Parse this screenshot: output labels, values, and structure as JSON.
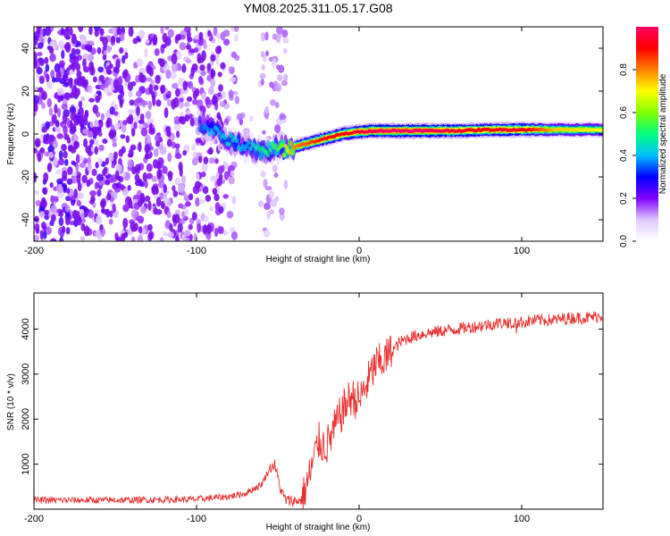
{
  "title": "YM08.2025.311.05.17.G08",
  "chart_data": [
    {
      "type": "heatmap",
      "description": "spectrogram",
      "xlabel": "Height of straight line (km)",
      "ylabel": "Frequency (Hz)",
      "xlim": [
        -200,
        150
      ],
      "ylim": [
        -50,
        50
      ],
      "xticks": [
        -200,
        -100,
        0,
        100
      ],
      "xtick_labels": [
        "-200",
        "-100",
        "0",
        "100"
      ],
      "yticks": [
        -40,
        -20,
        0,
        20,
        40
      ],
      "ytick_labels": [
        "-40",
        "-20",
        "0",
        "20",
        "40"
      ],
      "colorbar": {
        "label": "Normalized spectral amplitude",
        "range": [
          0,
          1
        ],
        "ticks": [
          0,
          0.2,
          0.4,
          0.6,
          0.8
        ],
        "tick_labels": [
          "0.0",
          "0.2",
          "0.4",
          "0.6",
          "0.8"
        ],
        "colors": [
          "#ffffff",
          "#e0c8ff",
          "#8000ff",
          "#0000ff",
          "#00c0ff",
          "#00ff80",
          "#80ff00",
          "#ffff00",
          "#ff8000",
          "#ff0000",
          "#ff0060"
        ]
      },
      "noise_region_km": [
        -200,
        -45
      ],
      "ridge": {
        "x": [
          -98,
          -90,
          -80,
          -70,
          -60,
          -50,
          -45,
          -40,
          -30,
          -20,
          -10,
          0,
          10,
          20,
          40,
          60,
          80,
          90,
          100,
          120,
          150
        ],
        "y": [
          5,
          2,
          -3,
          -6,
          -8,
          -7,
          -7,
          -6,
          -4,
          -2,
          0,
          1,
          1.5,
          1.5,
          1.5,
          1.5,
          2,
          2,
          2,
          2,
          2
        ],
        "amplitude": [
          0.35,
          0.4,
          0.45,
          0.4,
          0.5,
          0.55,
          0.7,
          0.8,
          0.85,
          0.9,
          0.9,
          0.95,
          1.0,
          1.0,
          1.0,
          0.95,
          0.9,
          0.95,
          0.95,
          0.75,
          0.7
        ]
      }
    },
    {
      "type": "line",
      "description": "SNR",
      "xlabel": "Height of straight line (km)",
      "ylabel": "SNR (10 * v/v)",
      "xlim": [
        -200,
        150
      ],
      "ylim": [
        0,
        4800
      ],
      "xticks": [
        -200,
        -100,
        0,
        100
      ],
      "xtick_labels": [
        "-200",
        "-100",
        "0",
        "100"
      ],
      "yticks": [
        1000,
        2000,
        3000,
        4000
      ],
      "ytick_labels": [
        "1000",
        "2000",
        "3000",
        "4000"
      ],
      "color": "#e83030",
      "series": [
        {
          "name": "SNR",
          "x": [
            -200,
            -150,
            -100,
            -80,
            -70,
            -60,
            -55,
            -52,
            -48,
            -45,
            -40,
            -35,
            -30,
            -25,
            -20,
            -15,
            -10,
            -5,
            0,
            5,
            10,
            15,
            20,
            25,
            30,
            40,
            50,
            60,
            70,
            80,
            90,
            100,
            110,
            120,
            130,
            140,
            150
          ],
          "y": [
            200,
            200,
            220,
            280,
            350,
            550,
            900,
            1000,
            400,
            200,
            180,
            200,
            800,
            1500,
            1400,
            1800,
            2200,
            2500,
            2400,
            2800,
            3200,
            3300,
            3500,
            3700,
            3800,
            3900,
            3950,
            4000,
            4050,
            4100,
            4150,
            4150,
            4200,
            4200,
            4250,
            4250,
            4300
          ]
        }
      ]
    }
  ]
}
